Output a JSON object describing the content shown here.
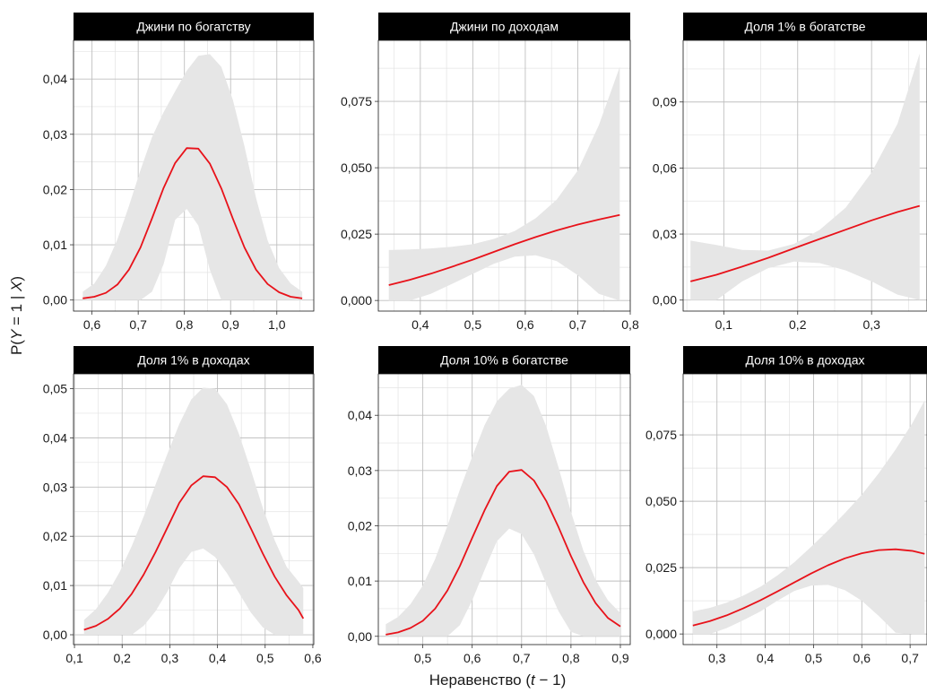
{
  "figure": {
    "ylabel_prefix": "P(",
    "ylabel_Y": "Y",
    "ylabel_mid": " = 1 | ",
    "ylabel_X": "X",
    "ylabel_suffix": ")",
    "xlabel_prefix": "Неравенство (",
    "xlabel_t": "t",
    "xlabel_suffix": " − 1)"
  },
  "colors": {
    "line": "#e8121a",
    "ribbon": "#e6e6e6",
    "strip": "#000000"
  },
  "chart_data": [
    {
      "type": "line",
      "title": "Джини по богатству",
      "xlim": [
        0.56,
        1.08
      ],
      "ylim": [
        -0.002,
        0.047
      ],
      "xticks": [
        0.6,
        0.7,
        0.8,
        0.9,
        1.0
      ],
      "xtick_labels": [
        "0,6",
        "0,7",
        "0,8",
        "0,9",
        "1,0"
      ],
      "yticks": [
        0.0,
        0.01,
        0.02,
        0.03,
        0.04
      ],
      "ytick_labels": [
        "0,00",
        "0,01",
        "0,02",
        "0,03",
        "0,04"
      ],
      "x": [
        0.58,
        0.605,
        0.63,
        0.655,
        0.68,
        0.705,
        0.73,
        0.755,
        0.78,
        0.805,
        0.83,
        0.855,
        0.88,
        0.905,
        0.93,
        0.955,
        0.98,
        1.005,
        1.03,
        1.055
      ],
      "y": [
        0.0003,
        0.0006,
        0.0013,
        0.0028,
        0.0055,
        0.0095,
        0.0148,
        0.0203,
        0.0248,
        0.0275,
        0.0274,
        0.0247,
        0.0202,
        0.0147,
        0.0095,
        0.0055,
        0.0029,
        0.0014,
        0.0006,
        0.0003
      ],
      "upper": [
        0.0015,
        0.003,
        0.0062,
        0.011,
        0.017,
        0.0235,
        0.0295,
        0.034,
        0.0378,
        0.0415,
        0.0442,
        0.0445,
        0.0422,
        0.0362,
        0.0278,
        0.0185,
        0.0108,
        0.0058,
        0.003,
        0.0015
      ],
      "lower": [
        0.0,
        0.0,
        0.0,
        0.0,
        0.0,
        0.0,
        0.0015,
        0.0065,
        0.0145,
        0.0165,
        0.0135,
        0.0055,
        0.0,
        0.0,
        0.0,
        0.0,
        0.0,
        0.0,
        0.0,
        0.0
      ]
    },
    {
      "type": "line",
      "title": "Джини по доходам",
      "xlim": [
        0.32,
        0.8
      ],
      "ylim": [
        -0.004,
        0.098
      ],
      "xticks": [
        0.4,
        0.5,
        0.6,
        0.7,
        0.8
      ],
      "xtick_labels": [
        "0,4",
        "0,5",
        "0,6",
        "0,7",
        "0,8"
      ],
      "yticks": [
        0.0,
        0.025,
        0.05,
        0.075
      ],
      "ytick_labels": [
        "0,000",
        "0,025",
        "0,050",
        "0,075"
      ],
      "x": [
        0.34,
        0.38,
        0.42,
        0.46,
        0.5,
        0.54,
        0.58,
        0.62,
        0.66,
        0.7,
        0.74,
        0.78
      ],
      "y": [
        0.0058,
        0.0078,
        0.0101,
        0.0127,
        0.0154,
        0.0183,
        0.0212,
        0.0239,
        0.0264,
        0.0286,
        0.0305,
        0.0322
      ],
      "upper": [
        0.019,
        0.0192,
        0.0196,
        0.0202,
        0.0212,
        0.0232,
        0.0262,
        0.031,
        0.038,
        0.049,
        0.066,
        0.088
      ],
      "lower": [
        0.0,
        0.0,
        0.0025,
        0.0062,
        0.01,
        0.0138,
        0.0165,
        0.017,
        0.0148,
        0.0095,
        0.0025,
        0.0
      ]
    },
    {
      "type": "line",
      "title": "Доля 1% в богатстве",
      "xlim": [
        0.045,
        0.375
      ],
      "ylim": [
        -0.005,
        0.118
      ],
      "xticks": [
        0.1,
        0.2,
        0.3
      ],
      "xtick_labels": [
        "0,1",
        "0,2",
        "0,3"
      ],
      "yticks": [
        0.0,
        0.03,
        0.06,
        0.09
      ],
      "ytick_labels": [
        "0,00",
        "0,03",
        "0,06",
        "0,09"
      ],
      "x": [
        0.055,
        0.09,
        0.125,
        0.16,
        0.195,
        0.23,
        0.265,
        0.3,
        0.335,
        0.365
      ],
      "y": [
        0.0085,
        0.0115,
        0.0152,
        0.0192,
        0.0235,
        0.0278,
        0.032,
        0.0362,
        0.04,
        0.0428
      ],
      "upper": [
        0.027,
        0.025,
        0.0228,
        0.0225,
        0.0255,
        0.032,
        0.042,
        0.058,
        0.08,
        0.112
      ],
      "lower": [
        0.0,
        0.0,
        0.0085,
        0.0145,
        0.0175,
        0.0168,
        0.0135,
        0.0085,
        0.0025,
        0.0
      ]
    },
    {
      "type": "line",
      "title": "Доля 1% в доходах",
      "xlim": [
        0.098,
        0.602
      ],
      "ylim": [
        -0.002,
        0.053
      ],
      "xticks": [
        0.1,
        0.2,
        0.3,
        0.4,
        0.5,
        0.6
      ],
      "xtick_labels": [
        "0,1",
        "0,2",
        "0,3",
        "0,4",
        "0,5",
        "0,6"
      ],
      "yticks": [
        0.0,
        0.01,
        0.02,
        0.03,
        0.04,
        0.05
      ],
      "ytick_labels": [
        "0,00",
        "0,01",
        "0,02",
        "0,03",
        "0,04",
        "0,05"
      ],
      "x": [
        0.12,
        0.145,
        0.17,
        0.195,
        0.22,
        0.245,
        0.27,
        0.295,
        0.32,
        0.345,
        0.37,
        0.395,
        0.42,
        0.445,
        0.47,
        0.495,
        0.52,
        0.545,
        0.57,
        0.58
      ],
      "y": [
        0.001,
        0.0018,
        0.0032,
        0.0053,
        0.0083,
        0.0122,
        0.0168,
        0.0218,
        0.0268,
        0.0303,
        0.0322,
        0.032,
        0.03,
        0.0265,
        0.0216,
        0.0165,
        0.0118,
        0.008,
        0.005,
        0.0033
      ],
      "upper": [
        0.003,
        0.0052,
        0.0085,
        0.0128,
        0.018,
        0.024,
        0.0305,
        0.0368,
        0.0428,
        0.0478,
        0.0502,
        0.05,
        0.0468,
        0.0408,
        0.0335,
        0.0258,
        0.0192,
        0.0138,
        0.0108,
        0.0095
      ],
      "lower": [
        0.0,
        0.0,
        0.0,
        0.0,
        0.0,
        0.0018,
        0.0048,
        0.0088,
        0.0135,
        0.0168,
        0.0175,
        0.0158,
        0.0125,
        0.0085,
        0.0045,
        0.0015,
        0.0,
        0.0,
        0.0,
        0.0
      ]
    },
    {
      "type": "line",
      "title": "Доля 10% в богатстве",
      "xlim": [
        0.41,
        0.92
      ],
      "ylim": [
        -0.0015,
        0.0475
      ],
      "xticks": [
        0.4,
        0.5,
        0.6,
        0.7,
        0.8,
        0.9
      ],
      "xtick_labels": [
        "0,4",
        "0,5",
        "0,6",
        "0,7",
        "0,8",
        "0,9"
      ],
      "yticks": [
        0.0,
        0.01,
        0.02,
        0.03,
        0.04
      ],
      "ytick_labels": [
        "0,00",
        "0,01",
        "0,02",
        "0,03",
        "0,04"
      ],
      "x": [
        0.425,
        0.45,
        0.475,
        0.5,
        0.525,
        0.55,
        0.575,
        0.6,
        0.625,
        0.65,
        0.675,
        0.7,
        0.725,
        0.75,
        0.775,
        0.8,
        0.825,
        0.85,
        0.875,
        0.9
      ],
      "y": [
        0.0003,
        0.0007,
        0.0015,
        0.0028,
        0.005,
        0.0083,
        0.0127,
        0.0178,
        0.0228,
        0.0272,
        0.0298,
        0.0301,
        0.0282,
        0.0245,
        0.0197,
        0.0145,
        0.0098,
        0.006,
        0.0033,
        0.0018
      ],
      "upper": [
        0.0022,
        0.0035,
        0.0058,
        0.0092,
        0.014,
        0.02,
        0.0265,
        0.0325,
        0.0382,
        0.0425,
        0.0448,
        0.0455,
        0.0435,
        0.038,
        0.0305,
        0.0225,
        0.0155,
        0.0102,
        0.0065,
        0.0042
      ],
      "lower": [
        0.0,
        0.0,
        0.0,
        0.0,
        0.0,
        0.0,
        0.002,
        0.0065,
        0.012,
        0.0172,
        0.0195,
        0.0185,
        0.0148,
        0.0095,
        0.0045,
        0.0008,
        0.0,
        0.0,
        0.0,
        0.0
      ]
    },
    {
      "type": "line",
      "title": "Доля 10% в доходах",
      "xlim": [
        0.23,
        0.735
      ],
      "ylim": [
        -0.004,
        0.098
      ],
      "xticks": [
        0.3,
        0.4,
        0.5,
        0.6,
        0.7
      ],
      "xtick_labels": [
        "0,3",
        "0,4",
        "0,5",
        "0,6",
        "0,7"
      ],
      "yticks": [
        0.0,
        0.025,
        0.05,
        0.075
      ],
      "ytick_labels": [
        "0,000",
        "0,025",
        "0,050",
        "0,075"
      ],
      "x": [
        0.25,
        0.285,
        0.32,
        0.355,
        0.39,
        0.425,
        0.46,
        0.495,
        0.53,
        0.565,
        0.6,
        0.635,
        0.67,
        0.705,
        0.73
      ],
      "y": [
        0.0032,
        0.0048,
        0.007,
        0.0097,
        0.0127,
        0.016,
        0.0194,
        0.0228,
        0.0259,
        0.0285,
        0.0304,
        0.0316,
        0.0319,
        0.0313,
        0.0302
      ],
      "upper": [
        0.0085,
        0.0098,
        0.0118,
        0.0145,
        0.0178,
        0.022,
        0.027,
        0.0328,
        0.039,
        0.0455,
        0.0525,
        0.0605,
        0.0695,
        0.0795,
        0.088
      ],
      "lower": [
        0.0,
        0.0,
        0.0022,
        0.0052,
        0.0085,
        0.0125,
        0.0162,
        0.0182,
        0.0185,
        0.0165,
        0.0125,
        0.0068,
        0.0005,
        0.0,
        0.0
      ]
    }
  ]
}
